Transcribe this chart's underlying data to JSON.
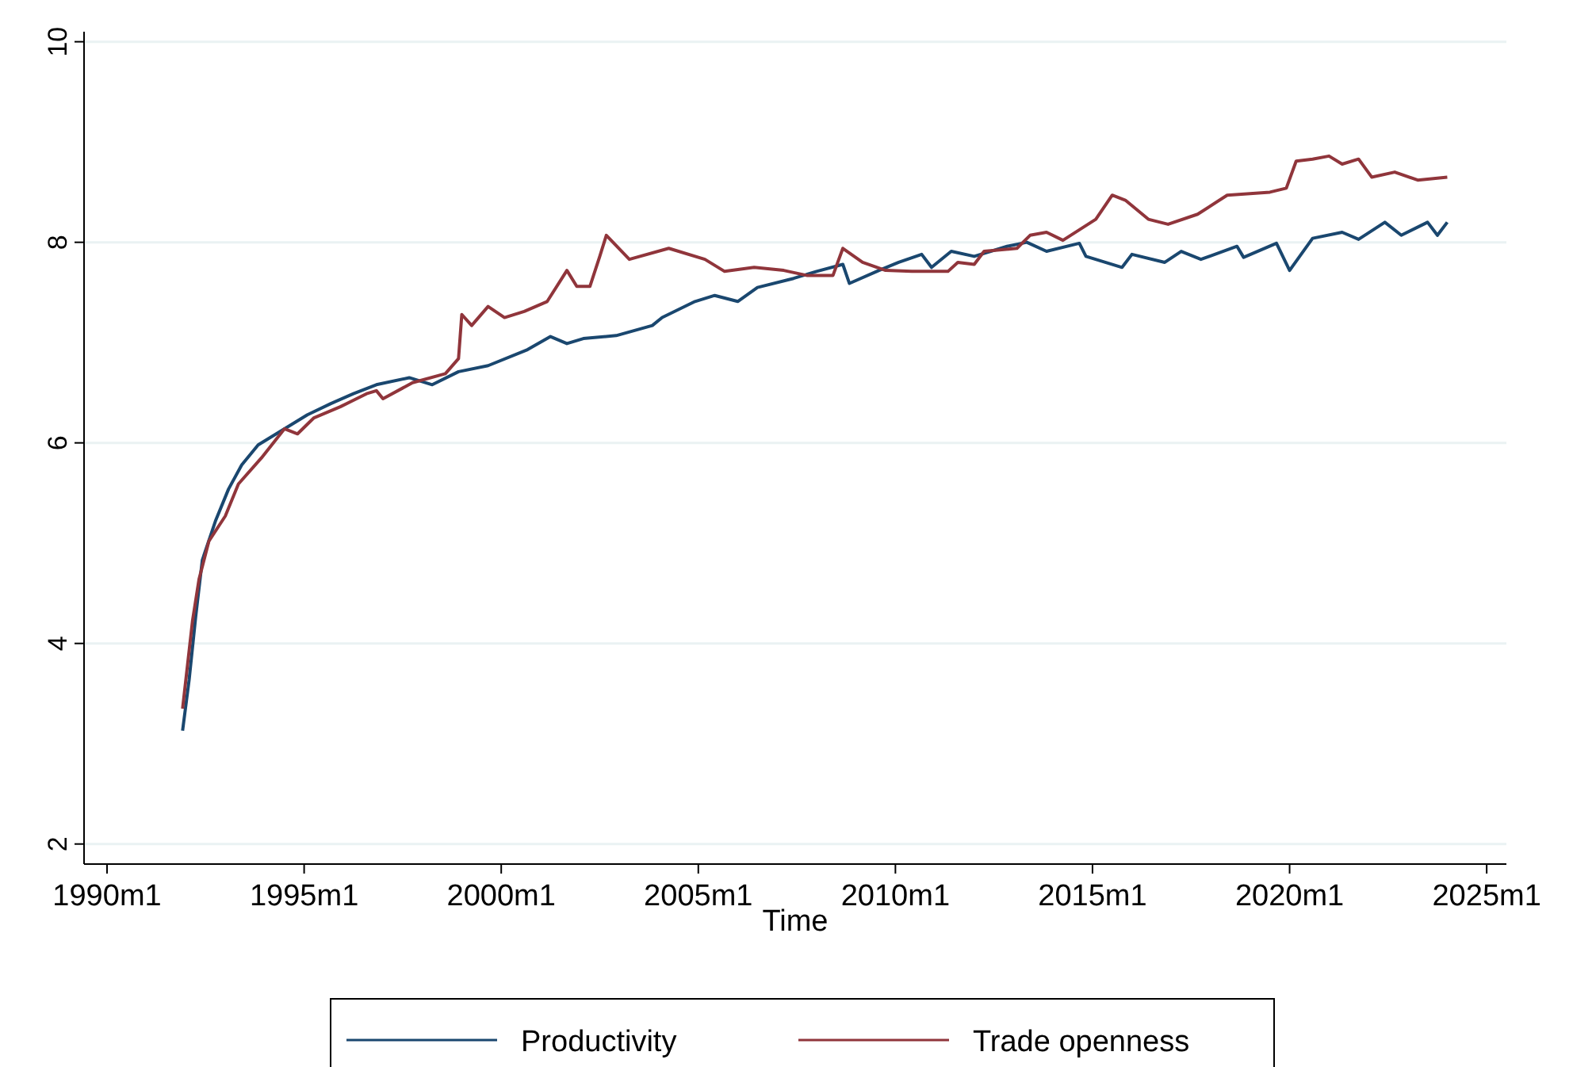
{
  "chart_data": {
    "type": "line",
    "xlabel": "Time",
    "xlim": [
      "1989-06",
      "2025-07"
    ],
    "xticks": [
      {
        "value": "1990-01",
        "label": "1990m1"
      },
      {
        "value": "1995-01",
        "label": "1995m1"
      },
      {
        "value": "2000-01",
        "label": "2000m1"
      },
      {
        "value": "2005-01",
        "label": "2005m1"
      },
      {
        "value": "2010-01",
        "label": "2010m1"
      },
      {
        "value": "2015-01",
        "label": "2015m1"
      },
      {
        "value": "2020-01",
        "label": "2020m1"
      },
      {
        "value": "2025-01",
        "label": "2025m1"
      }
    ],
    "ylim": [
      1.8,
      10.1
    ],
    "yticks": [
      2,
      4,
      6,
      8,
      10
    ],
    "grid": "y",
    "legend": "bottom",
    "marker": "none",
    "line_style": "solid",
    "series": [
      {
        "name": "Productivity",
        "color": "#1a476f",
        "x": [
          "1991-12",
          "1992-02",
          "1992-04",
          "1992-06",
          "1992-10",
          "1993-02",
          "1993-06",
          "1993-11",
          "1994-07",
          "1995-02",
          "1995-09",
          "1996-04",
          "1996-11",
          "1997-09",
          "1998-04",
          "1998-12",
          "1999-09",
          "2000-09",
          "2001-04",
          "2001-09",
          "2002-02",
          "2002-12",
          "2003-11",
          "2004-02",
          "2004-12",
          "2005-06",
          "2006-01",
          "2006-07",
          "2007-06",
          "2008-01",
          "2008-09",
          "2008-11",
          "2009-08",
          "2010-02",
          "2010-09",
          "2010-12",
          "2011-06",
          "2012-01",
          "2012-11",
          "2013-05",
          "2013-11",
          "2014-09",
          "2014-11",
          "2015-10",
          "2016-01",
          "2016-11",
          "2017-04",
          "2017-10",
          "2018-09",
          "2018-11",
          "2019-09",
          "2020-01",
          "2020-08",
          "2021-05",
          "2021-10",
          "2022-06",
          "2022-11",
          "2023-07",
          "2023-10",
          "2024-01"
        ],
        "values": [
          3.13,
          3.64,
          4.27,
          4.83,
          5.22,
          5.54,
          5.78,
          5.98,
          6.14,
          6.28,
          6.39,
          6.49,
          6.58,
          6.65,
          6.58,
          6.71,
          6.77,
          6.93,
          7.06,
          6.99,
          7.04,
          7.07,
          7.17,
          7.25,
          7.41,
          7.47,
          7.41,
          7.55,
          7.64,
          7.71,
          7.78,
          7.59,
          7.72,
          7.8,
          7.88,
          7.75,
          7.91,
          7.86,
          7.96,
          8.0,
          7.91,
          7.99,
          7.86,
          7.75,
          7.88,
          7.8,
          7.91,
          7.83,
          7.96,
          7.85,
          7.99,
          7.72,
          8.04,
          8.1,
          8.03,
          8.2,
          8.07,
          8.2,
          8.07,
          8.2
        ]
      },
      {
        "name": "Trade openness",
        "color": "#90353b",
        "x": [
          "1991-12",
          "1992-03",
          "1992-05",
          "1992-08",
          "1993-01",
          "1993-05",
          "1993-12",
          "1994-07",
          "1994-11",
          "1995-04",
          "1995-12",
          "1996-08",
          "1996-11",
          "1997-01",
          "1997-10",
          "1998-08",
          "1998-12",
          "1999-01",
          "1999-04",
          "1999-09",
          "2000-02",
          "2000-08",
          "2001-03",
          "2001-09",
          "2001-12",
          "2002-04",
          "2002-07",
          "2002-09",
          "2003-04",
          "2004-04",
          "2005-03",
          "2005-09",
          "2006-06",
          "2007-03",
          "2007-10",
          "2008-06",
          "2008-09",
          "2009-03",
          "2009-10",
          "2010-06",
          "2011-05",
          "2011-08",
          "2012-01",
          "2012-04",
          "2013-02",
          "2013-06",
          "2013-11",
          "2014-04",
          "2015-02",
          "2015-07",
          "2015-11",
          "2016-06",
          "2016-12",
          "2017-09",
          "2018-06",
          "2019-07",
          "2019-12",
          "2020-03",
          "2020-08",
          "2021-01",
          "2021-05",
          "2021-10",
          "2022-02",
          "2022-09",
          "2023-04",
          "2024-01"
        ],
        "values": [
          3.35,
          4.22,
          4.64,
          5.02,
          5.27,
          5.59,
          5.85,
          6.14,
          6.09,
          6.25,
          6.36,
          6.49,
          6.52,
          6.44,
          6.6,
          6.69,
          6.84,
          7.28,
          7.17,
          7.36,
          7.25,
          7.31,
          7.41,
          7.72,
          7.56,
          7.56,
          7.86,
          8.07,
          7.83,
          7.94,
          7.83,
          7.71,
          7.75,
          7.72,
          7.67,
          7.67,
          7.94,
          7.8,
          7.72,
          7.71,
          7.71,
          7.8,
          7.78,
          7.91,
          7.94,
          8.07,
          8.1,
          8.02,
          8.23,
          8.47,
          8.42,
          8.23,
          8.18,
          8.28,
          8.47,
          8.5,
          8.54,
          8.81,
          8.83,
          8.86,
          8.78,
          8.83,
          8.65,
          8.7,
          8.62,
          8.65
        ]
      }
    ]
  }
}
